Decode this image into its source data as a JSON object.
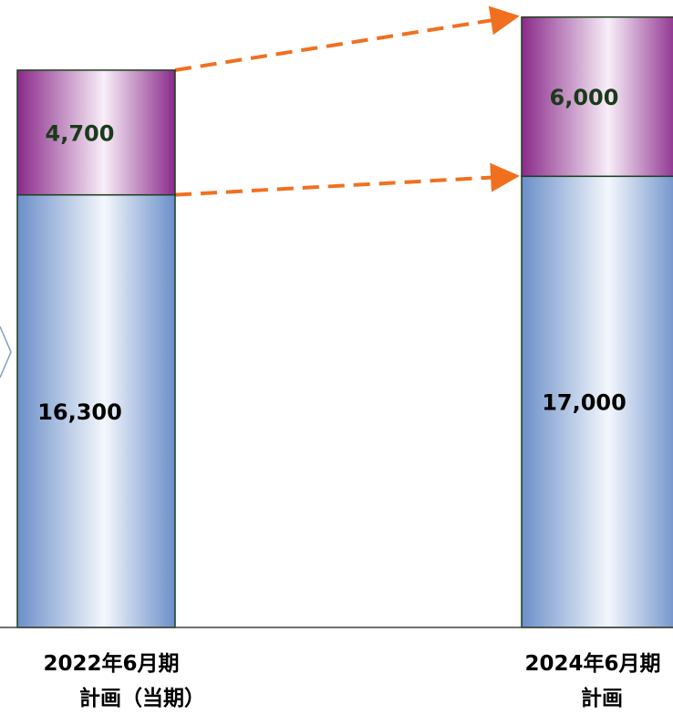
{
  "chart_data": {
    "type": "bar",
    "stacked": true,
    "categories": [
      [
        "2022年6月期",
        "計画（当期）"
      ],
      [
        "2024年6月期",
        "計画"
      ]
    ],
    "series": [
      {
        "values": [
          16300,
          17000
        ],
        "color": "#7f9fd0",
        "label_color": "#000000"
      },
      {
        "values": [
          4700,
          6000
        ],
        "color": "#8a2f8a",
        "label_color": "#1a3a1a"
      }
    ],
    "value_labels": [
      [
        "16,300",
        "17,000"
      ],
      [
        "4,700",
        "6,000"
      ]
    ],
    "arrow_color": "#f07020",
    "grid": false,
    "legend": "none"
  }
}
